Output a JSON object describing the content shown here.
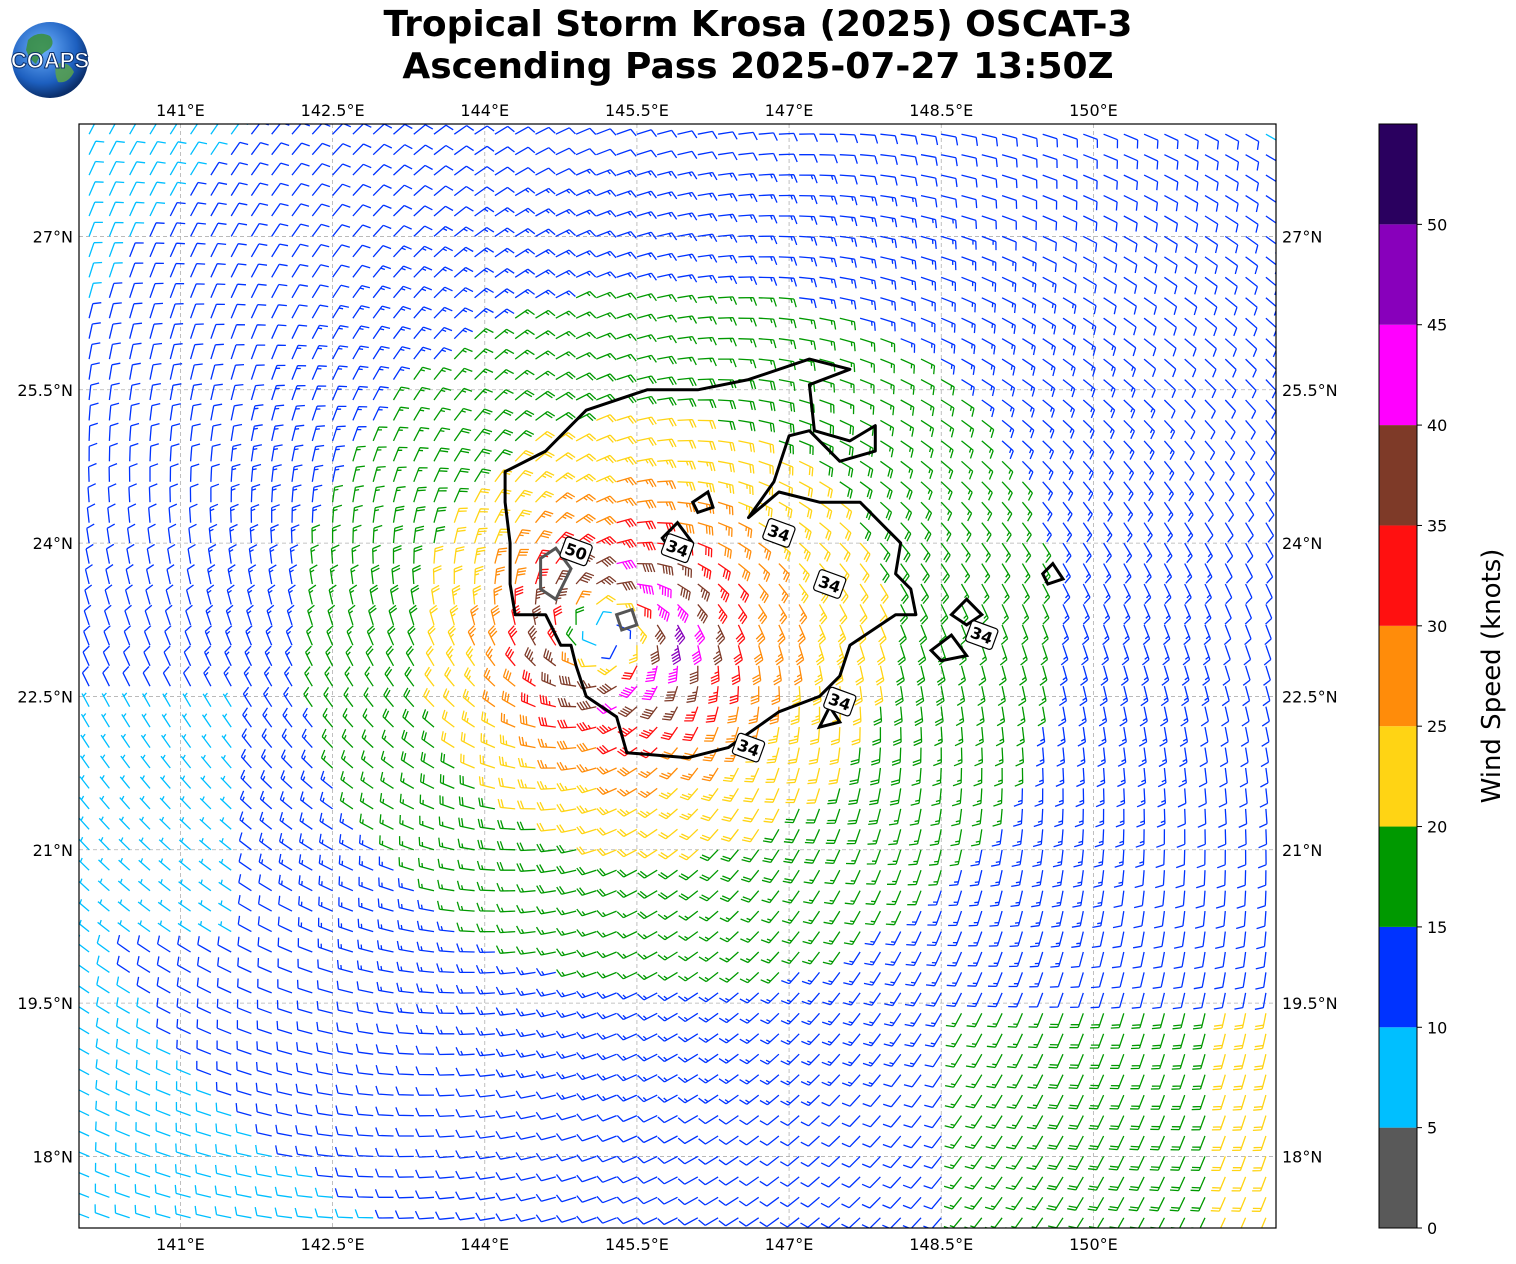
{
  "title": {
    "line1": "Tropical Storm Krosa (2025) OSCAT-3",
    "line2": "Ascending Pass 2025-07-27 13:50Z"
  },
  "logo": {
    "text": "COAPS"
  },
  "map": {
    "lon_range": [
      140.0,
      151.8
    ],
    "lat_range": [
      17.3,
      28.1
    ],
    "lon_ticks": [
      "141°E",
      "142.5°E",
      "144°E",
      "145.5°E",
      "147°E",
      "148.5°E",
      "150°E"
    ],
    "lon_tick_values": [
      141,
      142.5,
      144,
      145.5,
      147,
      148.5,
      150
    ],
    "lat_ticks": [
      "27°N",
      "25.5°N",
      "24°N",
      "22.5°N",
      "21°N",
      "19.5°N",
      "18°N"
    ],
    "lat_tick_values": [
      27,
      25.5,
      24,
      22.5,
      21,
      19.5,
      18
    ],
    "grid": "dashed",
    "storm_center": {
      "lon": 145.2,
      "lat": 23.1
    }
  },
  "contours": {
    "labels": [
      "34",
      "34",
      "34",
      "34",
      "34",
      "34",
      "50"
    ],
    "label_positions": [
      {
        "lon": 146.9,
        "lat": 24.1
      },
      {
        "lon": 145.9,
        "lat": 23.95
      },
      {
        "lon": 147.4,
        "lat": 23.6
      },
      {
        "lon": 148.9,
        "lat": 23.1
      },
      {
        "lon": 147.5,
        "lat": 22.45
      },
      {
        "lon": 146.6,
        "lat": 22.0
      },
      {
        "lon": 144.9,
        "lat": 23.92
      }
    ]
  },
  "colorbar": {
    "label": "Wind Speed (knots)",
    "ticks": [
      "0",
      "5",
      "10",
      "15",
      "20",
      "25",
      "30",
      "35",
      "40",
      "45",
      "50"
    ],
    "bins": [
      {
        "min": 0,
        "max": 5,
        "color": "#595959"
      },
      {
        "min": 5,
        "max": 10,
        "color": "#00bfff"
      },
      {
        "min": 10,
        "max": 15,
        "color": "#0033ff"
      },
      {
        "min": 15,
        "max": 20,
        "color": "#009900"
      },
      {
        "min": 20,
        "max": 25,
        "color": "#ffd414"
      },
      {
        "min": 25,
        "max": 30,
        "color": "#ff8c0a"
      },
      {
        "min": 30,
        "max": 35,
        "color": "#ff1010"
      },
      {
        "min": 35,
        "max": 40,
        "color": "#7e3a28"
      },
      {
        "min": 40,
        "max": 45,
        "color": "#ff00ff"
      },
      {
        "min": 45,
        "max": 50,
        "color": "#8800bb"
      },
      {
        "min": 50,
        "max": 55,
        "color": "#2a005f"
      }
    ]
  }
}
